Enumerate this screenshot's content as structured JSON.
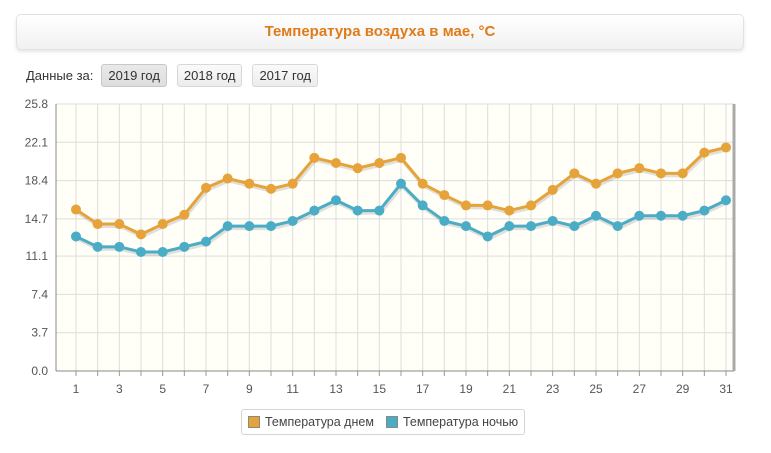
{
  "header": {
    "title": "Температура воздуха в мае, °С"
  },
  "period": {
    "label": "Данные за:",
    "years": [
      "2019 год",
      "2018 год",
      "2017 год"
    ],
    "active_index": 0
  },
  "colors": {
    "day": "#e5a33a",
    "night": "#4bacc6",
    "grid": "#dddddd",
    "plot_bg": "#fffef7"
  },
  "chart_data": {
    "type": "line",
    "title": "Температура воздуха в мае, °С",
    "xlabel": "",
    "ylabel": "",
    "x": [
      1,
      2,
      3,
      4,
      5,
      6,
      7,
      8,
      9,
      10,
      11,
      12,
      13,
      14,
      15,
      16,
      17,
      18,
      19,
      20,
      21,
      22,
      23,
      24,
      25,
      26,
      27,
      28,
      29,
      30,
      31
    ],
    "x_tick_labels": [
      "1",
      "3",
      "5",
      "7",
      "9",
      "11",
      "13",
      "15",
      "17",
      "19",
      "21",
      "23",
      "25",
      "27",
      "29",
      "31"
    ],
    "y_tick_labels": [
      "0.0",
      "3.7",
      "7.4",
      "11.1",
      "14.7",
      "18.4",
      "22.1",
      "25.8"
    ],
    "ylim": [
      0,
      25.8
    ],
    "grid": true,
    "legend_position": "bottom-center",
    "series": [
      {
        "name": "Температура днем",
        "color": "#e5a33a",
        "values": [
          15.6,
          14.2,
          14.2,
          13.2,
          14.2,
          15.1,
          17.7,
          18.6,
          18.1,
          17.6,
          18.1,
          20.6,
          20.1,
          19.6,
          20.1,
          20.6,
          18.1,
          17.0,
          16.0,
          16.0,
          15.5,
          16.0,
          17.5,
          19.1,
          18.1,
          19.1,
          19.6,
          19.1,
          19.1,
          21.1,
          21.6
        ]
      },
      {
        "name": "Температура ночью",
        "color": "#4bacc6",
        "values": [
          13.0,
          12.0,
          12.0,
          11.5,
          11.5,
          12.0,
          12.5,
          14.0,
          14.0,
          14.0,
          14.5,
          15.5,
          16.5,
          15.5,
          15.5,
          18.1,
          16.0,
          14.5,
          14.0,
          13.0,
          14.0,
          14.0,
          14.5,
          14.0,
          15.0,
          14.0,
          15.0,
          15.0,
          15.0,
          15.5,
          16.5
        ]
      }
    ]
  }
}
